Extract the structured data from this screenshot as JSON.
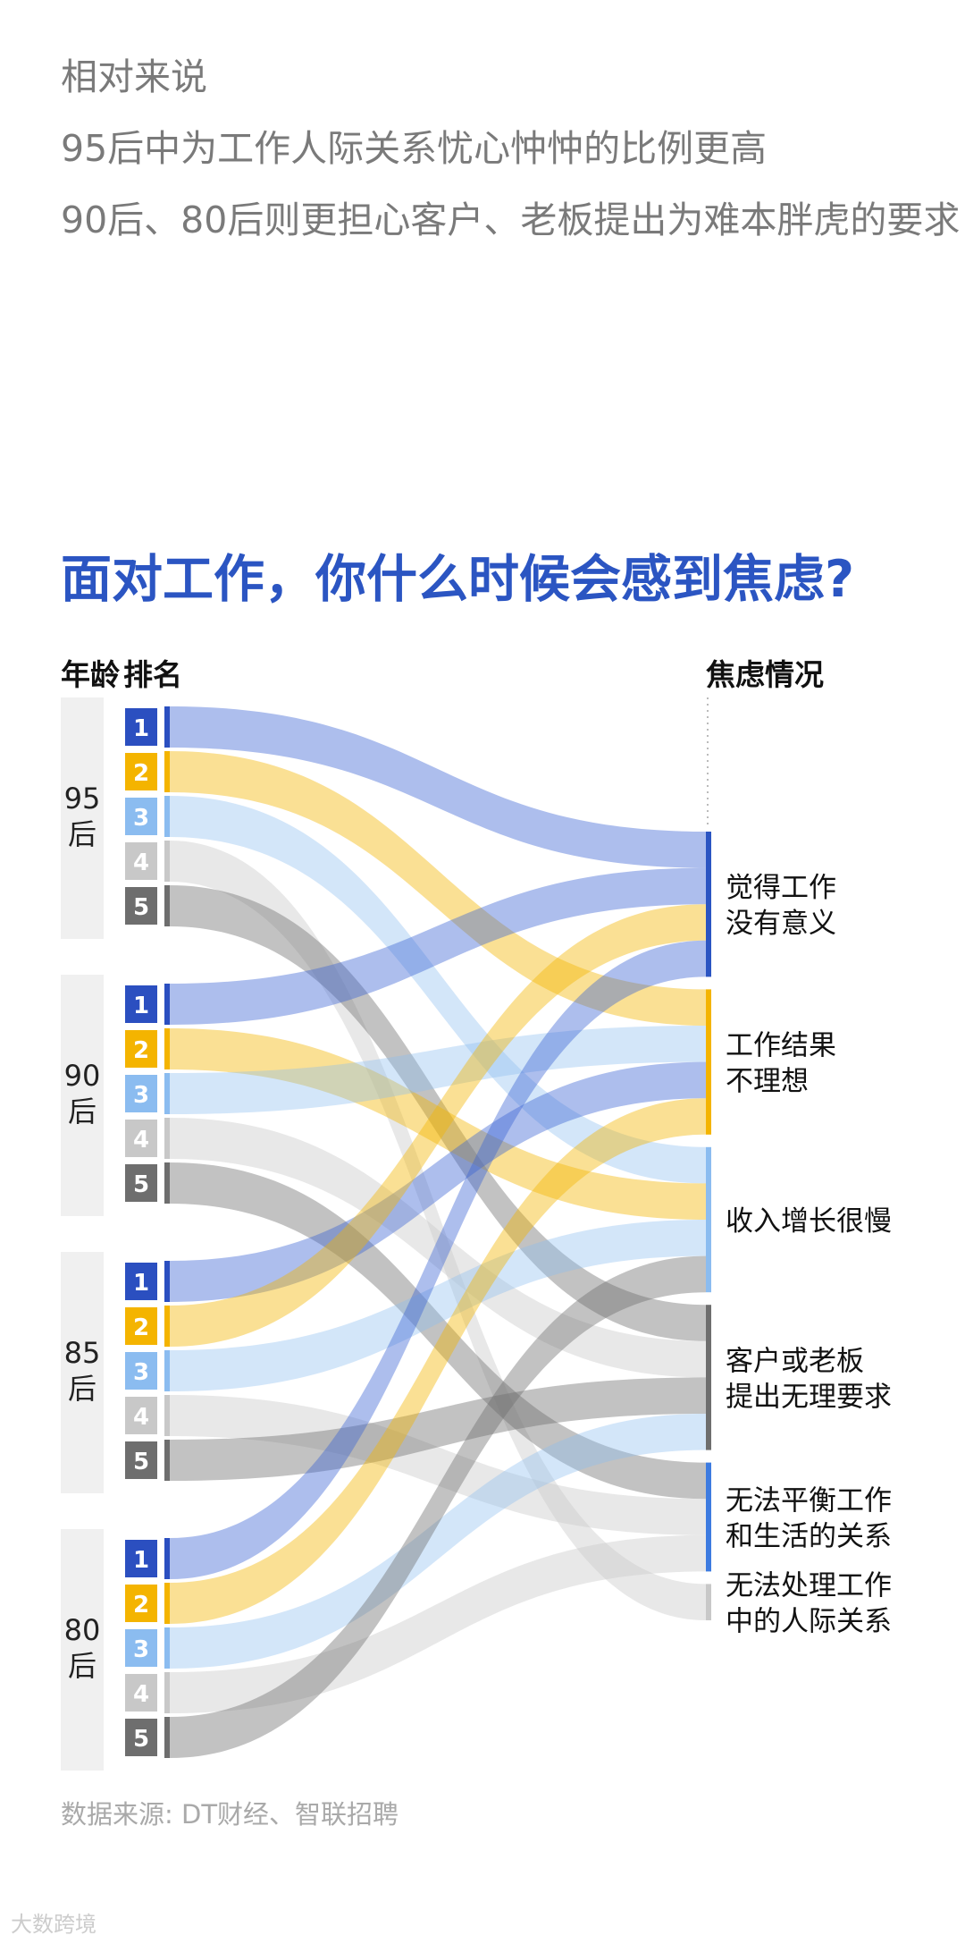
{
  "intro": [
    "相对来说",
    "95后中为工作人际关系忧心忡忡的比例更高",
    "90后、80后则更担心客户、老板提出为难本胖虎的要求"
  ],
  "source": "数据来源: DT财经、智联招聘",
  "watermark": "大数跨境",
  "chart_data": {
    "type": "sankey",
    "title": "面对工作，你什么时候会感到焦虑?",
    "left_header_age": "年龄",
    "left_header_rank": "排名",
    "right_header": "焦虑情况",
    "rank_colors": {
      "1": "#2b4fc0",
      "2": "#f4b400",
      "3": "#8bbcf0",
      "4": "#c8c8c8",
      "5": "#6e6e6e"
    },
    "categories": [
      {
        "id": "meaning",
        "label_lines": [
          "觉得工作",
          "没有意义"
        ],
        "color": "#2b55c2"
      },
      {
        "id": "result",
        "label_lines": [
          "工作结果",
          "不理想"
        ],
        "color": "#f4b400"
      },
      {
        "id": "income",
        "label_lines": [
          "收入增长很慢"
        ],
        "color": "#8bbcf0"
      },
      {
        "id": "client",
        "label_lines": [
          "客户或老板",
          "提出无理要求"
        ],
        "color": "#6e6e6e"
      },
      {
        "id": "balance",
        "label_lines": [
          "无法平衡工作",
          "和生活的关系"
        ],
        "color": "#3d7be0"
      },
      {
        "id": "relation",
        "label_lines": [
          "无法处理工作",
          "中的人际关系"
        ],
        "color": "#c8c8c8"
      }
    ],
    "groups": [
      {
        "age_lines": [
          "95",
          "后"
        ],
        "ranks": [
          {
            "rank": "1",
            "target": "meaning"
          },
          {
            "rank": "2",
            "target": "result"
          },
          {
            "rank": "3",
            "target": "income"
          },
          {
            "rank": "4",
            "target": "relation"
          },
          {
            "rank": "5",
            "target": "client"
          }
        ]
      },
      {
        "age_lines": [
          "90",
          "后"
        ],
        "ranks": [
          {
            "rank": "1",
            "target": "meaning"
          },
          {
            "rank": "2",
            "target": "income"
          },
          {
            "rank": "3",
            "target": "result"
          },
          {
            "rank": "4",
            "target": "client"
          },
          {
            "rank": "5",
            "target": "balance"
          }
        ]
      },
      {
        "age_lines": [
          "85",
          "后"
        ],
        "ranks": [
          {
            "rank": "1",
            "target": "result"
          },
          {
            "rank": "2",
            "target": "meaning"
          },
          {
            "rank": "3",
            "target": "income"
          },
          {
            "rank": "4",
            "target": "balance"
          },
          {
            "rank": "5",
            "target": "client"
          }
        ]
      },
      {
        "age_lines": [
          "80",
          "后"
        ],
        "ranks": [
          {
            "rank": "1",
            "target": "meaning"
          },
          {
            "rank": "2",
            "target": "result"
          },
          {
            "rank": "3",
            "target": "client"
          },
          {
            "rank": "4",
            "target": "balance"
          },
          {
            "rank": "5",
            "target": "income"
          }
        ]
      }
    ]
  }
}
